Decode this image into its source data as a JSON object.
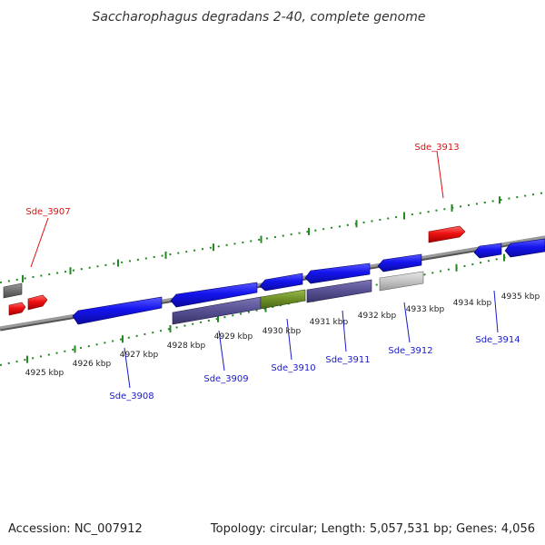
{
  "header": {
    "title": "Saccharophagus degradans 2-40, complete genome"
  },
  "footer": {
    "accession": "Accession: NC_007912",
    "summary": "Topology: circular; Length: 5,057,531 bp; Genes: 4,056"
  },
  "colors": {
    "forward_gene": "#1515ee",
    "complement_label": "#1a1acc",
    "forward_label": "#dd1111",
    "reverse_gene": "#ee1111",
    "rna_gene": "#6d8f25",
    "pseudo_gene": "#c4c4c4",
    "cds_feature": "#565092",
    "unknown_feature": "#707070",
    "ticks": "#228822",
    "backbone": "#888888"
  },
  "scale": {
    "unit": "kbp",
    "labels": [
      "4925 kbp",
      "4926 kbp",
      "4927 kbp",
      "4928 kbp",
      "4929 kbp",
      "4930 kbp",
      "4931 kbp",
      "4932 kbp",
      "4933 kbp",
      "4934 kbp",
      "4935 kbp"
    ]
  },
  "genes": [
    {
      "name": "Sde_3907",
      "strand": "forward"
    },
    {
      "name": "Sde_3908",
      "strand": "reverse"
    },
    {
      "name": "Sde_3909",
      "strand": "reverse"
    },
    {
      "name": "Sde_3910",
      "strand": "reverse"
    },
    {
      "name": "Sde_3911",
      "strand": "reverse"
    },
    {
      "name": "Sde_3912",
      "strand": "reverse"
    },
    {
      "name": "Sde_3913",
      "strand": "forward"
    },
    {
      "name": "Sde_3914",
      "strand": "reverse"
    }
  ]
}
